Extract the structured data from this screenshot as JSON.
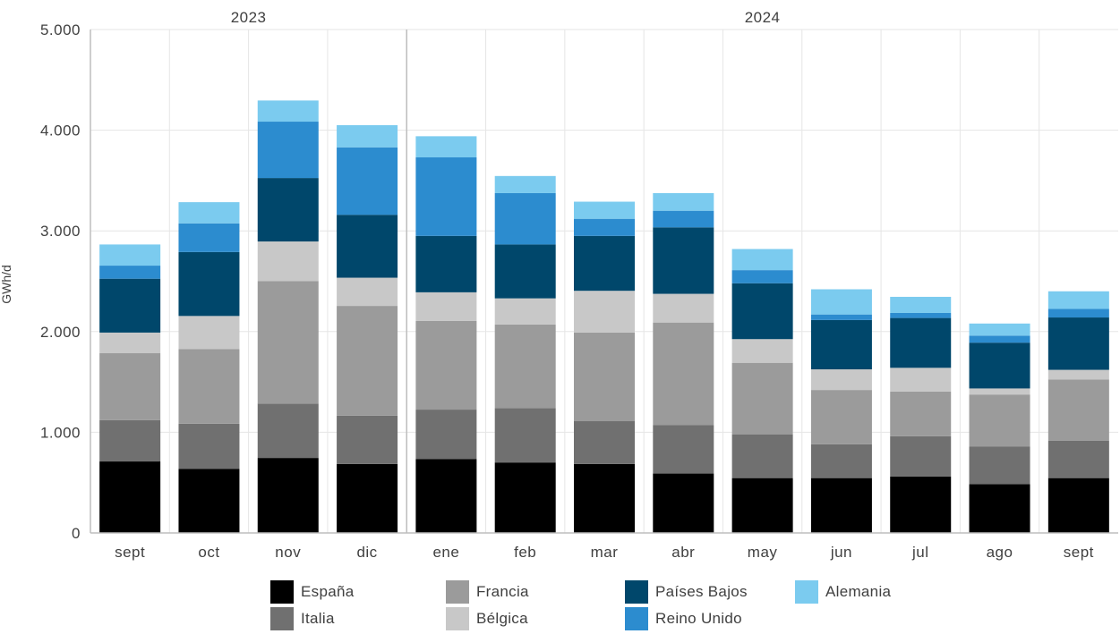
{
  "chart_data": {
    "type": "bar",
    "stacked": true,
    "ylabel": "GWh/d",
    "xlabel": "",
    "ylim": [
      0,
      5000
    ],
    "yticks": [
      "0",
      "1.000",
      "2.000",
      "3.000",
      "4.000",
      "5.000"
    ],
    "ytick_values": [
      0,
      1000,
      2000,
      3000,
      4000,
      5000
    ],
    "grid": true,
    "legend_position": "bottom",
    "year_groups": [
      {
        "label": "2023",
        "start": 0,
        "end": 3
      },
      {
        "label": "2024",
        "start": 4,
        "end": 12
      }
    ],
    "categories": [
      "sept",
      "oct",
      "nov",
      "dic",
      "ene",
      "feb",
      "mar",
      "abr",
      "may",
      "jun",
      "jul",
      "ago",
      "sept"
    ],
    "series": [
      {
        "name": "España",
        "color": "#000000",
        "values": [
          710,
          635,
          745,
          685,
          735,
          700,
          685,
          590,
          545,
          545,
          560,
          485,
          545
        ]
      },
      {
        "name": "Italia",
        "color": "#707070",
        "values": [
          410,
          450,
          540,
          480,
          490,
          540,
          425,
          480,
          435,
          335,
          400,
          375,
          370
        ]
      },
      {
        "name": "Francia",
        "color": "#9b9b9b",
        "values": [
          665,
          740,
          1215,
          1090,
          880,
          830,
          880,
          1020,
          710,
          540,
          445,
          515,
          610
        ]
      },
      {
        "name": "Bélgica",
        "color": "#c8c8c8",
        "values": [
          205,
          330,
          395,
          280,
          285,
          260,
          415,
          285,
          235,
          205,
          235,
          60,
          95
        ]
      },
      {
        "name": "Países Bajos",
        "color": "#00476b",
        "values": [
          535,
          635,
          630,
          625,
          560,
          535,
          545,
          660,
          555,
          490,
          495,
          455,
          520
        ]
      },
      {
        "name": "Reino Unido",
        "color": "#2c8ccf",
        "values": [
          130,
          285,
          560,
          670,
          780,
          510,
          170,
          165,
          130,
          55,
          50,
          70,
          85
        ]
      },
      {
        "name": "Alemania",
        "color": "#7bcbef",
        "values": [
          210,
          210,
          210,
          220,
          210,
          170,
          170,
          175,
          210,
          250,
          160,
          120,
          175
        ]
      }
    ]
  }
}
